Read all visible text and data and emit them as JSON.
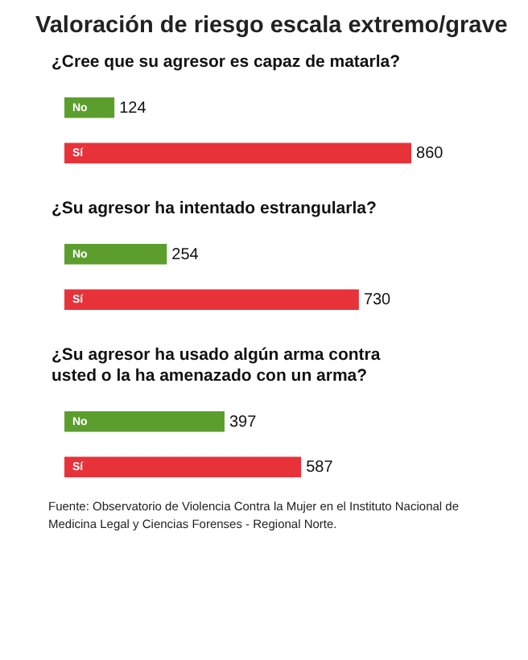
{
  "chart_data": [
    {
      "type": "bar",
      "orientation": "horizontal",
      "title": "Valoración de riesgo escala extremo/grave",
      "subtitle": "¿Cree que su agresor es capaz de matarla?",
      "categories": [
        "No",
        "Sí"
      ],
      "values": [
        124,
        860
      ],
      "colors": [
        "#5c9e2e",
        "#e8323a"
      ],
      "data_labels": true
    },
    {
      "type": "bar",
      "orientation": "horizontal",
      "subtitle": "¿Su agresor ha intentado estrangularla?",
      "categories": [
        "No",
        "Sí"
      ],
      "values": [
        254,
        730
      ],
      "colors": [
        "#5c9e2e",
        "#e8323a"
      ],
      "data_labels": true
    },
    {
      "type": "bar",
      "orientation": "horizontal",
      "subtitle": "¿Su agresor ha usado algún arma contra\nusted o la ha amenazado con un arma?",
      "categories": [
        "No",
        "Sí"
      ],
      "values": [
        397,
        587
      ],
      "colors": [
        "#5c9e2e",
        "#e8323a"
      ],
      "data_labels": true,
      "annotations": [
        "Fuente: Observatorio de Violencia Contra la Mujer  en el Instituto Nacional de Medicina Legal y Ciencias Forenses - Regional Norte."
      ]
    }
  ]
}
